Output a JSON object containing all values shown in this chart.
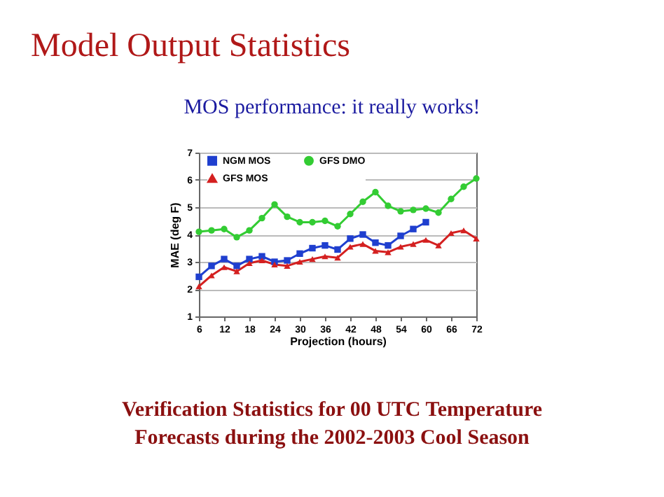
{
  "chart_data": {
    "type": "line",
    "title": "Model Output Statistics",
    "subtitle": "MOS performance:  it really works!",
    "xlabel": "Projection (hours)",
    "ylabel": "MAE (deg F)",
    "annotations": [
      "Verification Statistics for 00 UTC Temperature",
      "Forecasts during the 2002-2003 Cool Season"
    ],
    "x": [
      6,
      9,
      12,
      15,
      18,
      21,
      24,
      27,
      30,
      33,
      36,
      39,
      42,
      45,
      48,
      51,
      54,
      57,
      60,
      63,
      66,
      69,
      72
    ],
    "series": [
      {
        "name": "NGM MOS",
        "color": "#1f3fcf",
        "marker": "square",
        "values": [
          2.45,
          2.85,
          3.1,
          2.85,
          3.1,
          3.2,
          3.0,
          3.05,
          3.3,
          3.5,
          3.6,
          3.45,
          3.85,
          4.0,
          3.7,
          3.6,
          3.95,
          4.2,
          4.45,
          null,
          null,
          null,
          null
        ]
      },
      {
        "name": "GFS MOS",
        "color": "#d42020",
        "marker": "triangle",
        "values": [
          2.1,
          2.5,
          2.8,
          2.65,
          2.95,
          3.05,
          2.9,
          2.85,
          3.0,
          3.1,
          3.2,
          3.15,
          3.55,
          3.65,
          3.4,
          3.35,
          3.55,
          3.65,
          3.8,
          3.6,
          4.05,
          4.15,
          3.85
        ]
      },
      {
        "name": "GFS DMO",
        "color": "#33cc33",
        "marker": "circle",
        "values": [
          4.1,
          4.15,
          4.2,
          3.9,
          4.15,
          4.6,
          5.1,
          4.65,
          4.45,
          4.45,
          4.5,
          4.3,
          4.75,
          5.2,
          5.55,
          5.05,
          4.85,
          4.9,
          4.95,
          4.8,
          5.3,
          5.75,
          6.05
        ]
      }
    ],
    "xlim": [
      6,
      72
    ],
    "xticks": [
      6,
      12,
      18,
      24,
      30,
      36,
      42,
      48,
      54,
      60,
      66,
      72
    ],
    "ylim": [
      1,
      7
    ],
    "yticks": [
      1,
      2,
      3,
      4,
      5,
      6,
      7
    ],
    "grid": "y",
    "legend": "top left",
    "line_style": "solid"
  }
}
